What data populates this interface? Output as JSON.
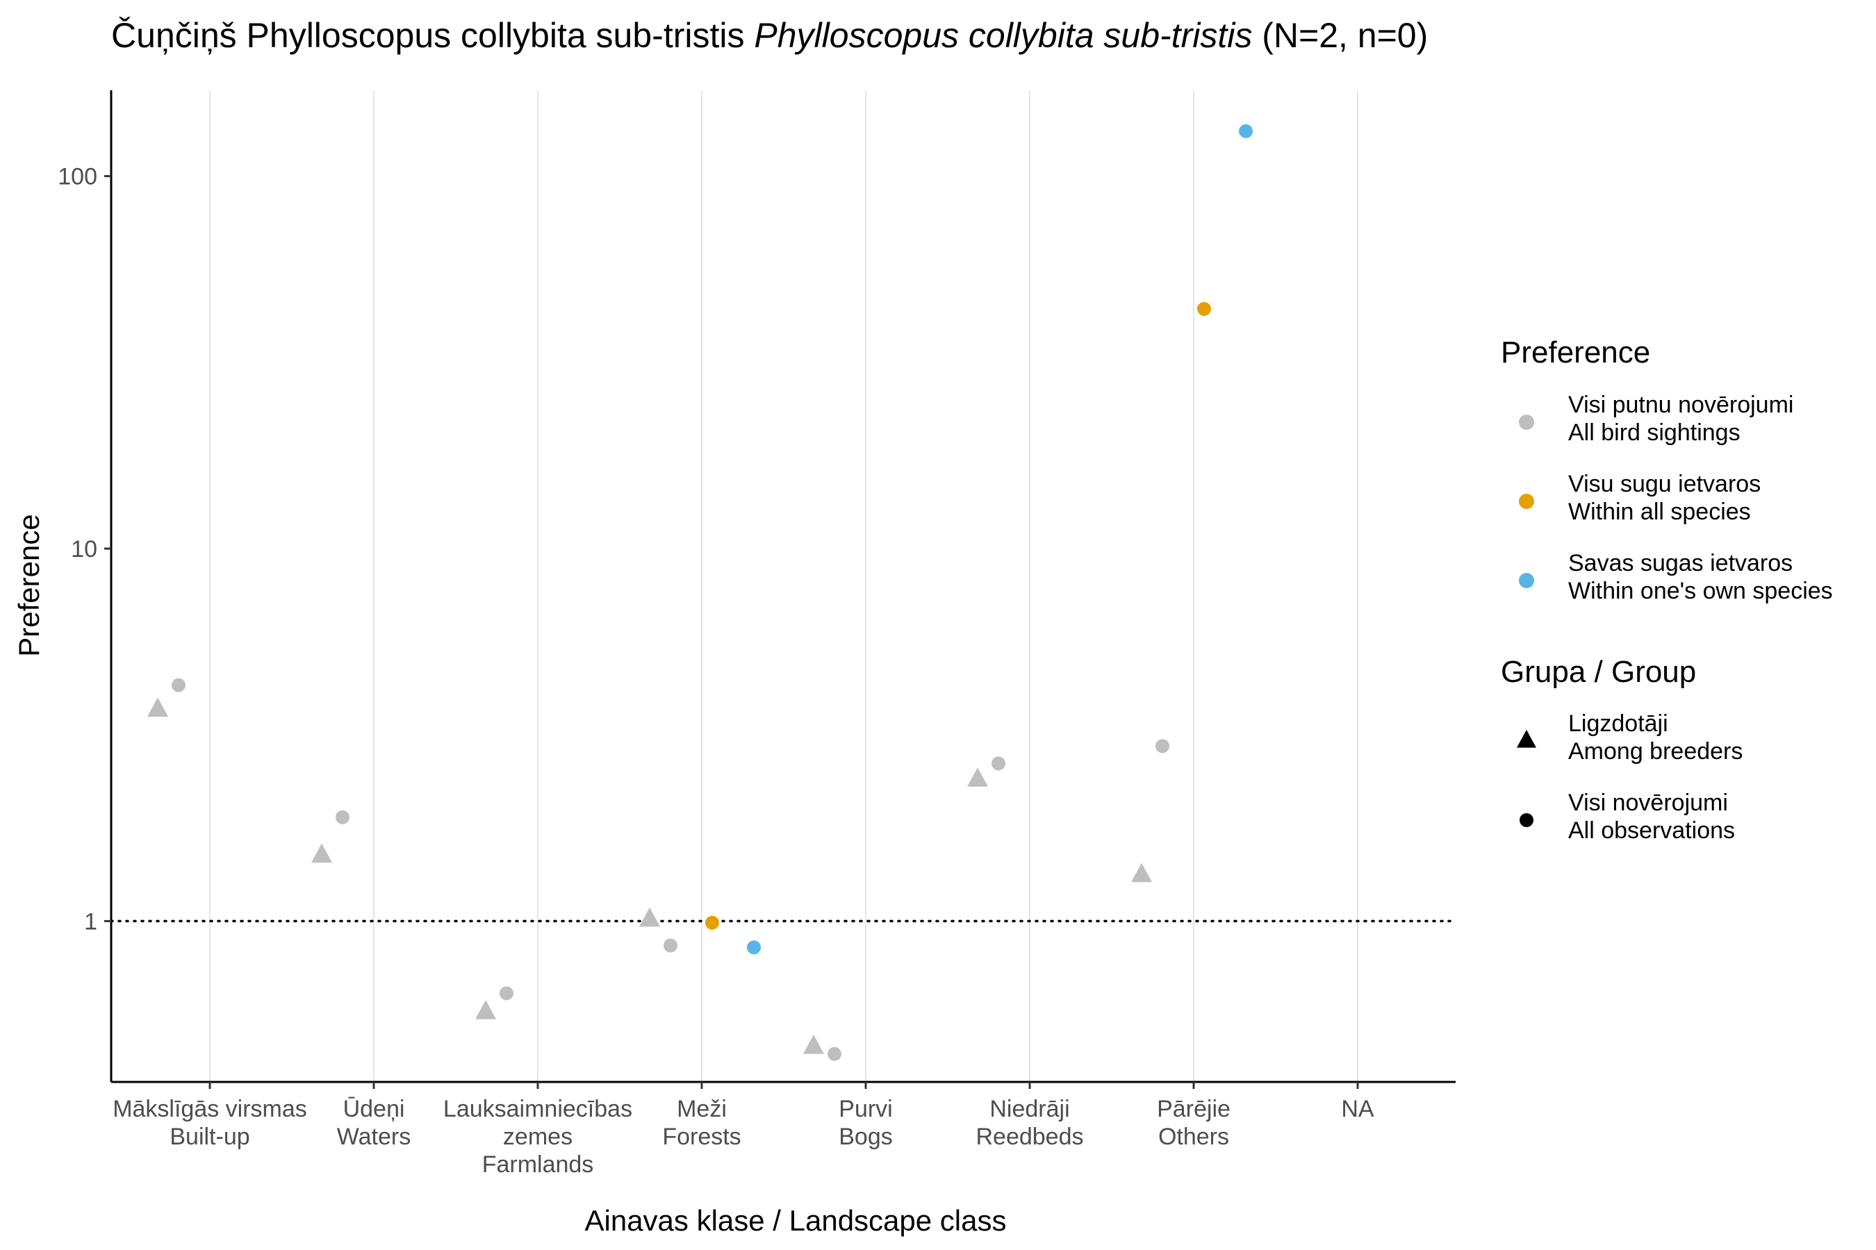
{
  "chart_data": {
    "type": "scatter",
    "title": {
      "prefix": "Čuņčiņš Phylloscopus collybita sub-tristis",
      "species_italic": "Phylloscopus collybita sub-tristis",
      "suffix": "(N=2, n=0)"
    },
    "xlabel": "Ainavas klase / Landscape class",
    "ylabel": "Preference",
    "y_scale": "log10",
    "ylim": [
      0.37,
      170
    ],
    "y_ticks": [
      {
        "value": 1,
        "label": "1"
      },
      {
        "value": 10,
        "label": "10"
      },
      {
        "value": 100,
        "label": "100"
      }
    ],
    "reference_line": {
      "y": 1,
      "style": "dotted"
    },
    "grid": "vertical major only",
    "categories": [
      {
        "lv": "Mākslīgās virsmas",
        "en": "Built-up"
      },
      {
        "lv": "Ūdeņi",
        "en": "Waters"
      },
      {
        "lv": "Lauksaimniecības",
        "lv2": "zemes",
        "en": "Farmlands"
      },
      {
        "lv": "Meži",
        "en": "Forests"
      },
      {
        "lv": "Purvi",
        "en": "Bogs"
      },
      {
        "lv": "Niedrāji",
        "en": "Reedbeds"
      },
      {
        "lv": "Pārējie",
        "en": "Others"
      },
      {
        "lv": "NA",
        "en": ""
      }
    ],
    "series": [
      {
        "preference": "all",
        "group": "breeders",
        "color": "#BEBEBE",
        "shape": "triangle",
        "points": [
          {
            "cat": 0,
            "y": 3.7
          },
          {
            "cat": 1,
            "y": 1.5
          },
          {
            "cat": 2,
            "y": 0.57
          },
          {
            "cat": 3,
            "y": 1.01
          },
          {
            "cat": 4,
            "y": 0.46
          },
          {
            "cat": 5,
            "y": 2.4
          },
          {
            "cat": 6,
            "y": 1.33
          }
        ]
      },
      {
        "preference": "all",
        "group": "all",
        "color": "#BEBEBE",
        "shape": "circle",
        "points": [
          {
            "cat": 0,
            "y": 4.3
          },
          {
            "cat": 1,
            "y": 1.9
          },
          {
            "cat": 2,
            "y": 0.64
          },
          {
            "cat": 3,
            "y": 0.86
          },
          {
            "cat": 4,
            "y": 0.44
          },
          {
            "cat": 5,
            "y": 2.65
          },
          {
            "cat": 6,
            "y": 2.95
          }
        ]
      },
      {
        "preference": "species",
        "group": "all",
        "color": "#E69F00",
        "shape": "circle",
        "points": [
          {
            "cat": 3,
            "y": 0.99
          },
          {
            "cat": 6,
            "y": 44
          }
        ]
      },
      {
        "preference": "own",
        "group": "all",
        "color": "#56B4E9",
        "shape": "circle",
        "points": [
          {
            "cat": 3,
            "y": 0.85
          },
          {
            "cat": 6,
            "y": 132
          }
        ]
      }
    ],
    "legend": {
      "placement": "right",
      "preference": {
        "title": "Preference",
        "items": [
          {
            "key": "all",
            "color": "#BEBEBE",
            "line1": "Visi putnu novērojumi",
            "line2": "All bird sightings"
          },
          {
            "key": "species",
            "color": "#E69F00",
            "line1": "Visu sugu ietvaros",
            "line2": "Within all species"
          },
          {
            "key": "own",
            "color": "#56B4E9",
            "line1": "Savas sugas ietvaros",
            "line2": "Within one's own species"
          }
        ]
      },
      "group": {
        "title": "Grupa / Group",
        "items": [
          {
            "key": "breeders",
            "shape": "triangle",
            "line1": "Ligzdotāji",
            "line2": "Among breeders"
          },
          {
            "key": "all",
            "shape": "circle",
            "line1": "Visi novērojumi",
            "line2": "All observations"
          }
        ]
      }
    }
  }
}
